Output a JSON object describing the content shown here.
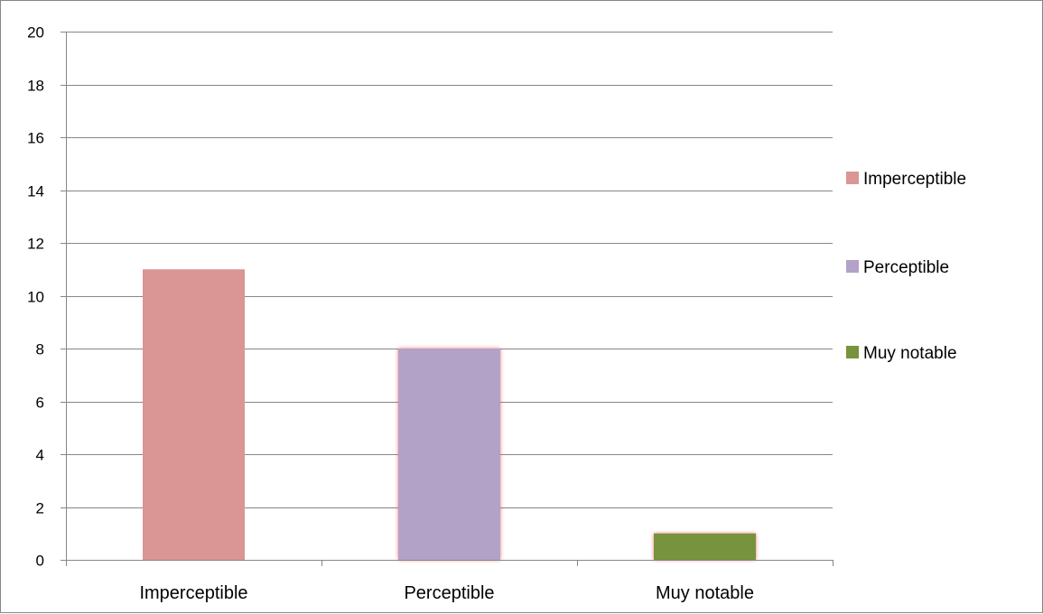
{
  "chart_data": {
    "type": "bar",
    "categories": [
      "Imperceptible",
      "Perceptible",
      "Muy notable"
    ],
    "values": [
      11,
      8,
      1
    ],
    "colors": [
      "#d99694",
      "#b3a2c7",
      "#77933c"
    ],
    "ylim": [
      0,
      20
    ],
    "yticks": [
      "0",
      "2",
      "4",
      "6",
      "8",
      "10",
      "12",
      "14",
      "16",
      "18",
      "20"
    ],
    "grid": true,
    "legend": {
      "placement": "right",
      "entries": [
        "Imperceptible",
        "Perceptible",
        "Muy notable"
      ]
    },
    "title": "",
    "xlabel": "",
    "ylabel": ""
  }
}
